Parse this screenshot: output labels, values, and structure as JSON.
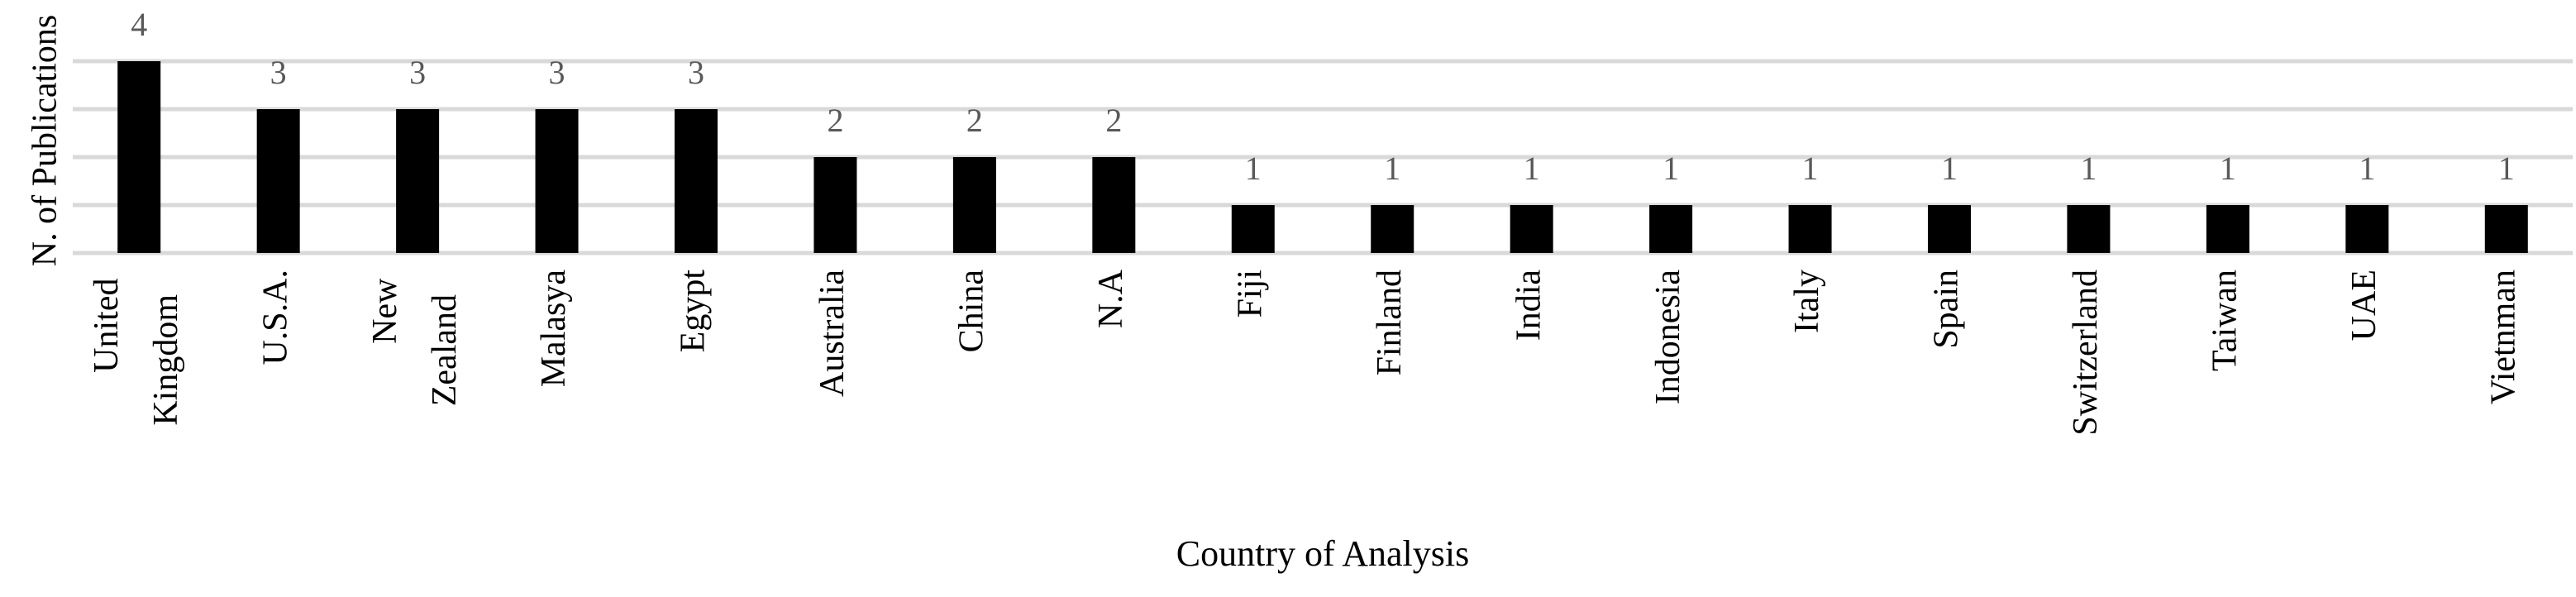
{
  "chart_data": {
    "type": "bar",
    "x_label": "Country of Analysis",
    "y_label": "N. of Publications",
    "categories": [
      "United Kingdom",
      "U.S.A.",
      "New Zealand",
      "Malasya",
      "Egypt",
      "Australia",
      "China",
      "N.A",
      "Fiji",
      "Finland",
      "India",
      "Indonesia",
      "Italy",
      "Spain",
      "Switzerland",
      "Taiwan",
      "UAE",
      "Vietnman"
    ],
    "values": [
      4,
      3,
      3,
      3,
      3,
      2,
      2,
      2,
      1,
      1,
      1,
      1,
      1,
      1,
      1,
      1,
      1,
      1
    ],
    "color": "#000000",
    "ylim": [
      0,
      4
    ],
    "yticks": [
      0,
      1,
      2,
      3,
      4
    ],
    "grid": true
  }
}
